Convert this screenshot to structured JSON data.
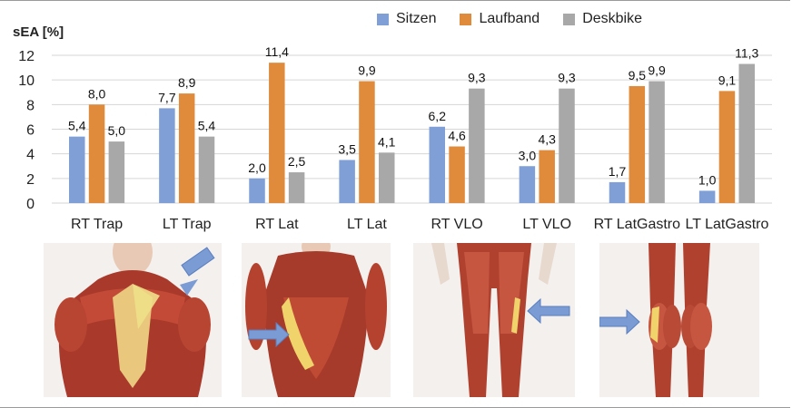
{
  "chart_data": {
    "type": "bar",
    "title": "",
    "ylabel": "sEA [%]",
    "xlabel": "",
    "ylim": [
      0,
      12
    ],
    "yticks": [
      0,
      2,
      4,
      6,
      8,
      10,
      12
    ],
    "grid": true,
    "legend_position": "top-right",
    "categories": [
      "RT Trap",
      "LT Trap",
      "RT Lat",
      "LT Lat",
      "RT VLO",
      "LT VLO",
      "RT LatGastro",
      "LT LatGastro"
    ],
    "series": [
      {
        "name": "Sitzen",
        "color": "#7f9fd6",
        "values": [
          5.4,
          7.7,
          2.0,
          3.5,
          6.2,
          3.0,
          1.7,
          1.0
        ],
        "labels": [
          "5,4",
          "7,7",
          "2,0",
          "3,5",
          "6,2",
          "3,0",
          "1,7",
          "1,0"
        ]
      },
      {
        "name": "Laufband",
        "color": "#e08a3c",
        "values": [
          8.0,
          8.9,
          11.4,
          9.9,
          4.6,
          4.3,
          9.5,
          9.1
        ],
        "labels": [
          "8,0",
          "8,9",
          "11,4",
          "9,9",
          "4,6",
          "4,3",
          "9,5",
          "9,1"
        ]
      },
      {
        "name": "Deskbike",
        "color": "#a8a8a8",
        "values": [
          5.0,
          5.4,
          2.5,
          4.1,
          9.3,
          9.3,
          9.9,
          11.3
        ],
        "labels": [
          "5,0",
          "5,4",
          "2,5",
          "4,1",
          "9,3",
          "9,3",
          "9,9",
          "11,3"
        ]
      }
    ]
  },
  "illustrations": [
    {
      "icon": "upper-back-trapezius-anatomy"
    },
    {
      "icon": "back-latissimus-anatomy"
    },
    {
      "icon": "legs-front-vastus-lateralis-anatomy"
    },
    {
      "icon": "legs-back-gastrocnemius-anatomy"
    }
  ]
}
